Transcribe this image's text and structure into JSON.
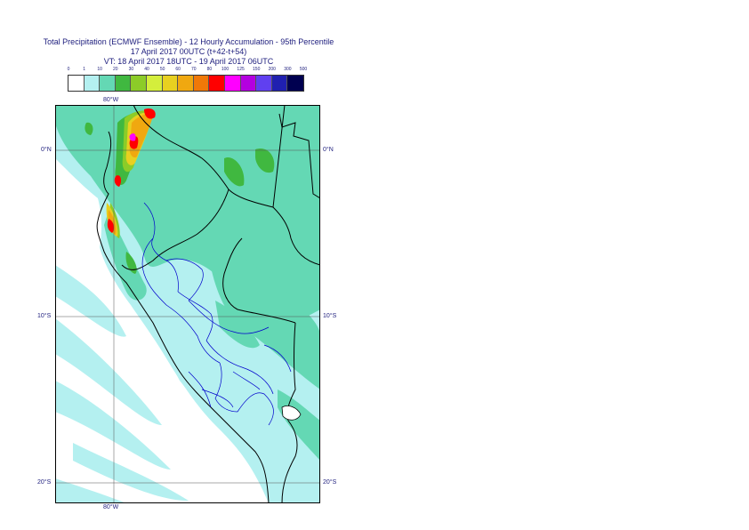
{
  "title": {
    "line1": "Total Precipitation (ECMWF Ensemble) - 12 Hourly Accumulation - 95th Percentile",
    "line2": "17 April 2017 00UTC (t+42-t+54)",
    "line3": "VT: 18 April 2017 18UTC - 19 April 2017 06UTC"
  },
  "legend": {
    "thresholds": [
      "0",
      "1",
      "10",
      "20",
      "30",
      "40",
      "50",
      "60",
      "70",
      "80",
      "100",
      "125",
      "150",
      "200",
      "300",
      "500"
    ],
    "colors": [
      "#ffffff",
      "#b4f0f0",
      "#64d8b4",
      "#40b840",
      "#8ccc28",
      "#d4ee3c",
      "#e8d020",
      "#f0a810",
      "#f07808",
      "#ff0000",
      "#ff00ff",
      "#b400e0",
      "#6040f0",
      "#2020b0",
      "#000050"
    ]
  },
  "axes": {
    "lon_top": "80°W",
    "lon_bottom": "80°W",
    "lat_left": [
      "0°N",
      "10°S",
      "20°S"
    ],
    "lat_right": [
      "0°N",
      "10°S",
      "20°S"
    ]
  },
  "map": {
    "region": "Peru / Ecuador",
    "lon_range": [
      -82.5,
      -66.5
    ],
    "lat_range": [
      3,
      -21.5
    ],
    "gridlines": {
      "lon": [
        -80
      ],
      "lat": [
        0,
        -10,
        -20
      ]
    },
    "colors": {
      "land_light": "#b4f0f0",
      "rain_moderate": "#64d8b4",
      "frame": "#000000",
      "border": "#000000",
      "admin": "#0000cc"
    }
  }
}
